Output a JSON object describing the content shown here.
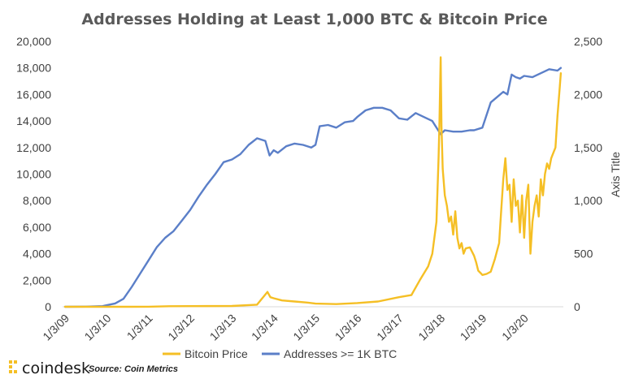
{
  "chart_data": {
    "type": "line",
    "title": "Addresses Holding at Least 1,000 BTC & Bitcoin Price",
    "x_ticks": [
      "1/3/09",
      "1/3/10",
      "1/3/11",
      "1/3/12",
      "1/3/13",
      "1/3/14",
      "1/3/15",
      "1/3/16",
      "1/3/17",
      "1/3/18",
      "1/3/19",
      "1/3/20"
    ],
    "y_left": {
      "min": 0,
      "max": 20000,
      "ticks": [
        "0",
        "2,000",
        "4,000",
        "6,000",
        "8,000",
        "10,000",
        "12,000",
        "14,000",
        "16,000",
        "18,000",
        "20,000"
      ]
    },
    "y_right": {
      "min": 0,
      "max": 2500,
      "ticks": [
        "0",
        "500",
        "1,000",
        "1,500",
        "2,000",
        "2,500"
      ],
      "title": "Axis Title"
    },
    "grid": false,
    "legend_position": "bottom",
    "series": [
      {
        "name": "Bitcoin Price",
        "axis": "right",
        "color": "#F5BF25",
        "x": [
          2009.0,
          2010.0,
          2010.5,
          2011.0,
          2011.5,
          2012.0,
          2013.0,
          2013.6,
          2013.85,
          2013.92,
          2014.0,
          2014.2,
          2014.5,
          2014.8,
          2015.0,
          2015.5,
          2016.0,
          2016.5,
          2017.0,
          2017.3,
          2017.5,
          2017.7,
          2017.8,
          2017.9,
          2017.95,
          2017.97,
          2018.0,
          2018.02,
          2018.05,
          2018.1,
          2018.15,
          2018.2,
          2018.25,
          2018.3,
          2018.35,
          2018.4,
          2018.45,
          2018.5,
          2018.55,
          2018.6,
          2018.7,
          2018.8,
          2018.85,
          2018.9,
          2018.95,
          2019.0,
          2019.1,
          2019.2,
          2019.3,
          2019.4,
          2019.45,
          2019.5,
          2019.55,
          2019.6,
          2019.65,
          2019.7,
          2019.75,
          2019.8,
          2019.85,
          2019.9,
          2019.95,
          2020.0,
          2020.05,
          2020.1,
          2020.15,
          2020.2,
          2020.25,
          2020.3,
          2020.35,
          2020.4,
          2020.45,
          2020.5,
          2020.55,
          2020.6,
          2020.65,
          2020.7,
          2020.75,
          2020.8,
          2020.85,
          2020.88
        ],
        "y": [
          0,
          0,
          0,
          1,
          5,
          6,
          8,
          20,
          140,
          90,
          80,
          60,
          50,
          40,
          30,
          25,
          35,
          50,
          90,
          110,
          250,
          380,
          500,
          800,
          1400,
          1700,
          2350,
          1700,
          1300,
          1050,
          950,
          800,
          850,
          680,
          900,
          650,
          550,
          600,
          500,
          550,
          560,
          480,
          420,
          340,
          320,
          300,
          310,
          330,
          450,
          600,
          900,
          1200,
          1400,
          1100,
          1150,
          800,
          1200,
          950,
          1000,
          700,
          1050,
          650,
          1000,
          1150,
          500,
          800,
          950,
          1050,
          850,
          1200,
          1050,
          1250,
          1350,
          1300,
          1400,
          1450,
          1500,
          1800,
          2050,
          2200
        ]
      },
      {
        "name": "Addresses >= 1K BTC",
        "axis": "left",
        "color": "#5B7FC8",
        "x": [
          2009.0,
          2009.5,
          2009.9,
          2010.2,
          2010.4,
          2010.6,
          2010.8,
          2011.0,
          2011.2,
          2011.4,
          2011.6,
          2011.8,
          2012.0,
          2012.2,
          2012.4,
          2012.6,
          2012.8,
          2013.0,
          2013.2,
          2013.4,
          2013.6,
          2013.8,
          2013.9,
          2014.0,
          2014.1,
          2014.3,
          2014.5,
          2014.7,
          2014.9,
          2015.0,
          2015.1,
          2015.3,
          2015.5,
          2015.7,
          2015.9,
          2016.0,
          2016.2,
          2016.4,
          2016.6,
          2016.8,
          2017.0,
          2017.2,
          2017.4,
          2017.6,
          2017.8,
          2018.0,
          2018.1,
          2018.3,
          2018.5,
          2018.7,
          2018.8,
          2019.0,
          2019.2,
          2019.35,
          2019.5,
          2019.6,
          2019.7,
          2019.8,
          2019.9,
          2020.0,
          2020.2,
          2020.4,
          2020.6,
          2020.8,
          2020.88
        ],
        "y": [
          0,
          10,
          50,
          250,
          600,
          1500,
          2500,
          3500,
          4500,
          5200,
          5700,
          6500,
          7300,
          8300,
          9200,
          10000,
          10900,
          11100,
          11500,
          12200,
          12700,
          12500,
          11400,
          11800,
          11600,
          12100,
          12300,
          12200,
          12000,
          12200,
          13600,
          13700,
          13500,
          13900,
          14000,
          14300,
          14800,
          15000,
          15000,
          14800,
          14200,
          14100,
          14600,
          14300,
          14000,
          13000,
          13300,
          13200,
          13200,
          13300,
          13300,
          13500,
          15400,
          15800,
          16200,
          16000,
          17500,
          17300,
          17200,
          17400,
          17300,
          17600,
          17900,
          17800,
          18000
        ]
      }
    ],
    "source": "Source: Coin Metrics"
  },
  "brand": {
    "name": "coindesk",
    "logo_icon": "coindesk-dots-icon"
  }
}
